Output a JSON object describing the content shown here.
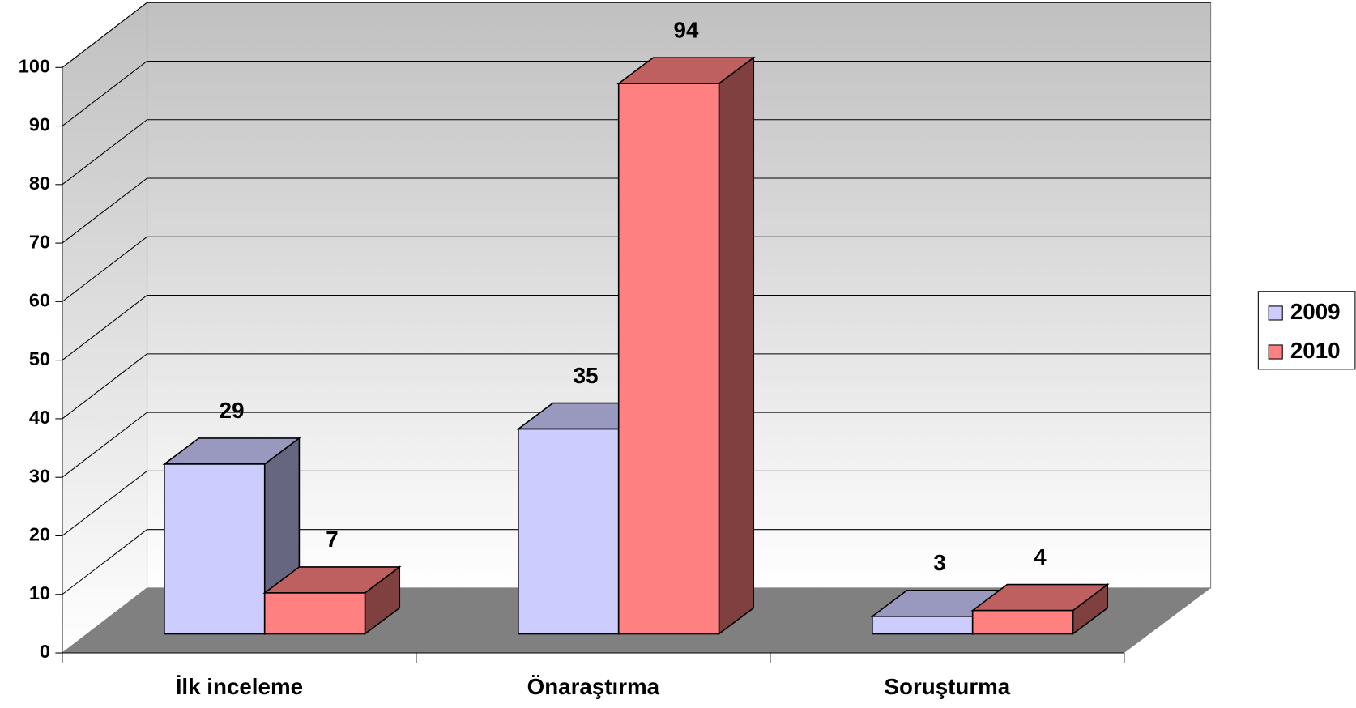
{
  "chart_data": {
    "type": "bar3d",
    "categories": [
      "İlk inceleme",
      "Önaraştırma",
      "Soruşturma"
    ],
    "series": [
      {
        "name": "2009",
        "color": "#ccccff",
        "values": [
          29,
          35,
          3
        ]
      },
      {
        "name": "2010",
        "color": "#ff8080",
        "values": [
          7,
          94,
          4
        ]
      }
    ],
    "ylim": [
      0,
      100
    ],
    "yticks": [
      0,
      10,
      20,
      30,
      40,
      50,
      60,
      70,
      80,
      90,
      100
    ],
    "grid": true,
    "legend": "right"
  }
}
